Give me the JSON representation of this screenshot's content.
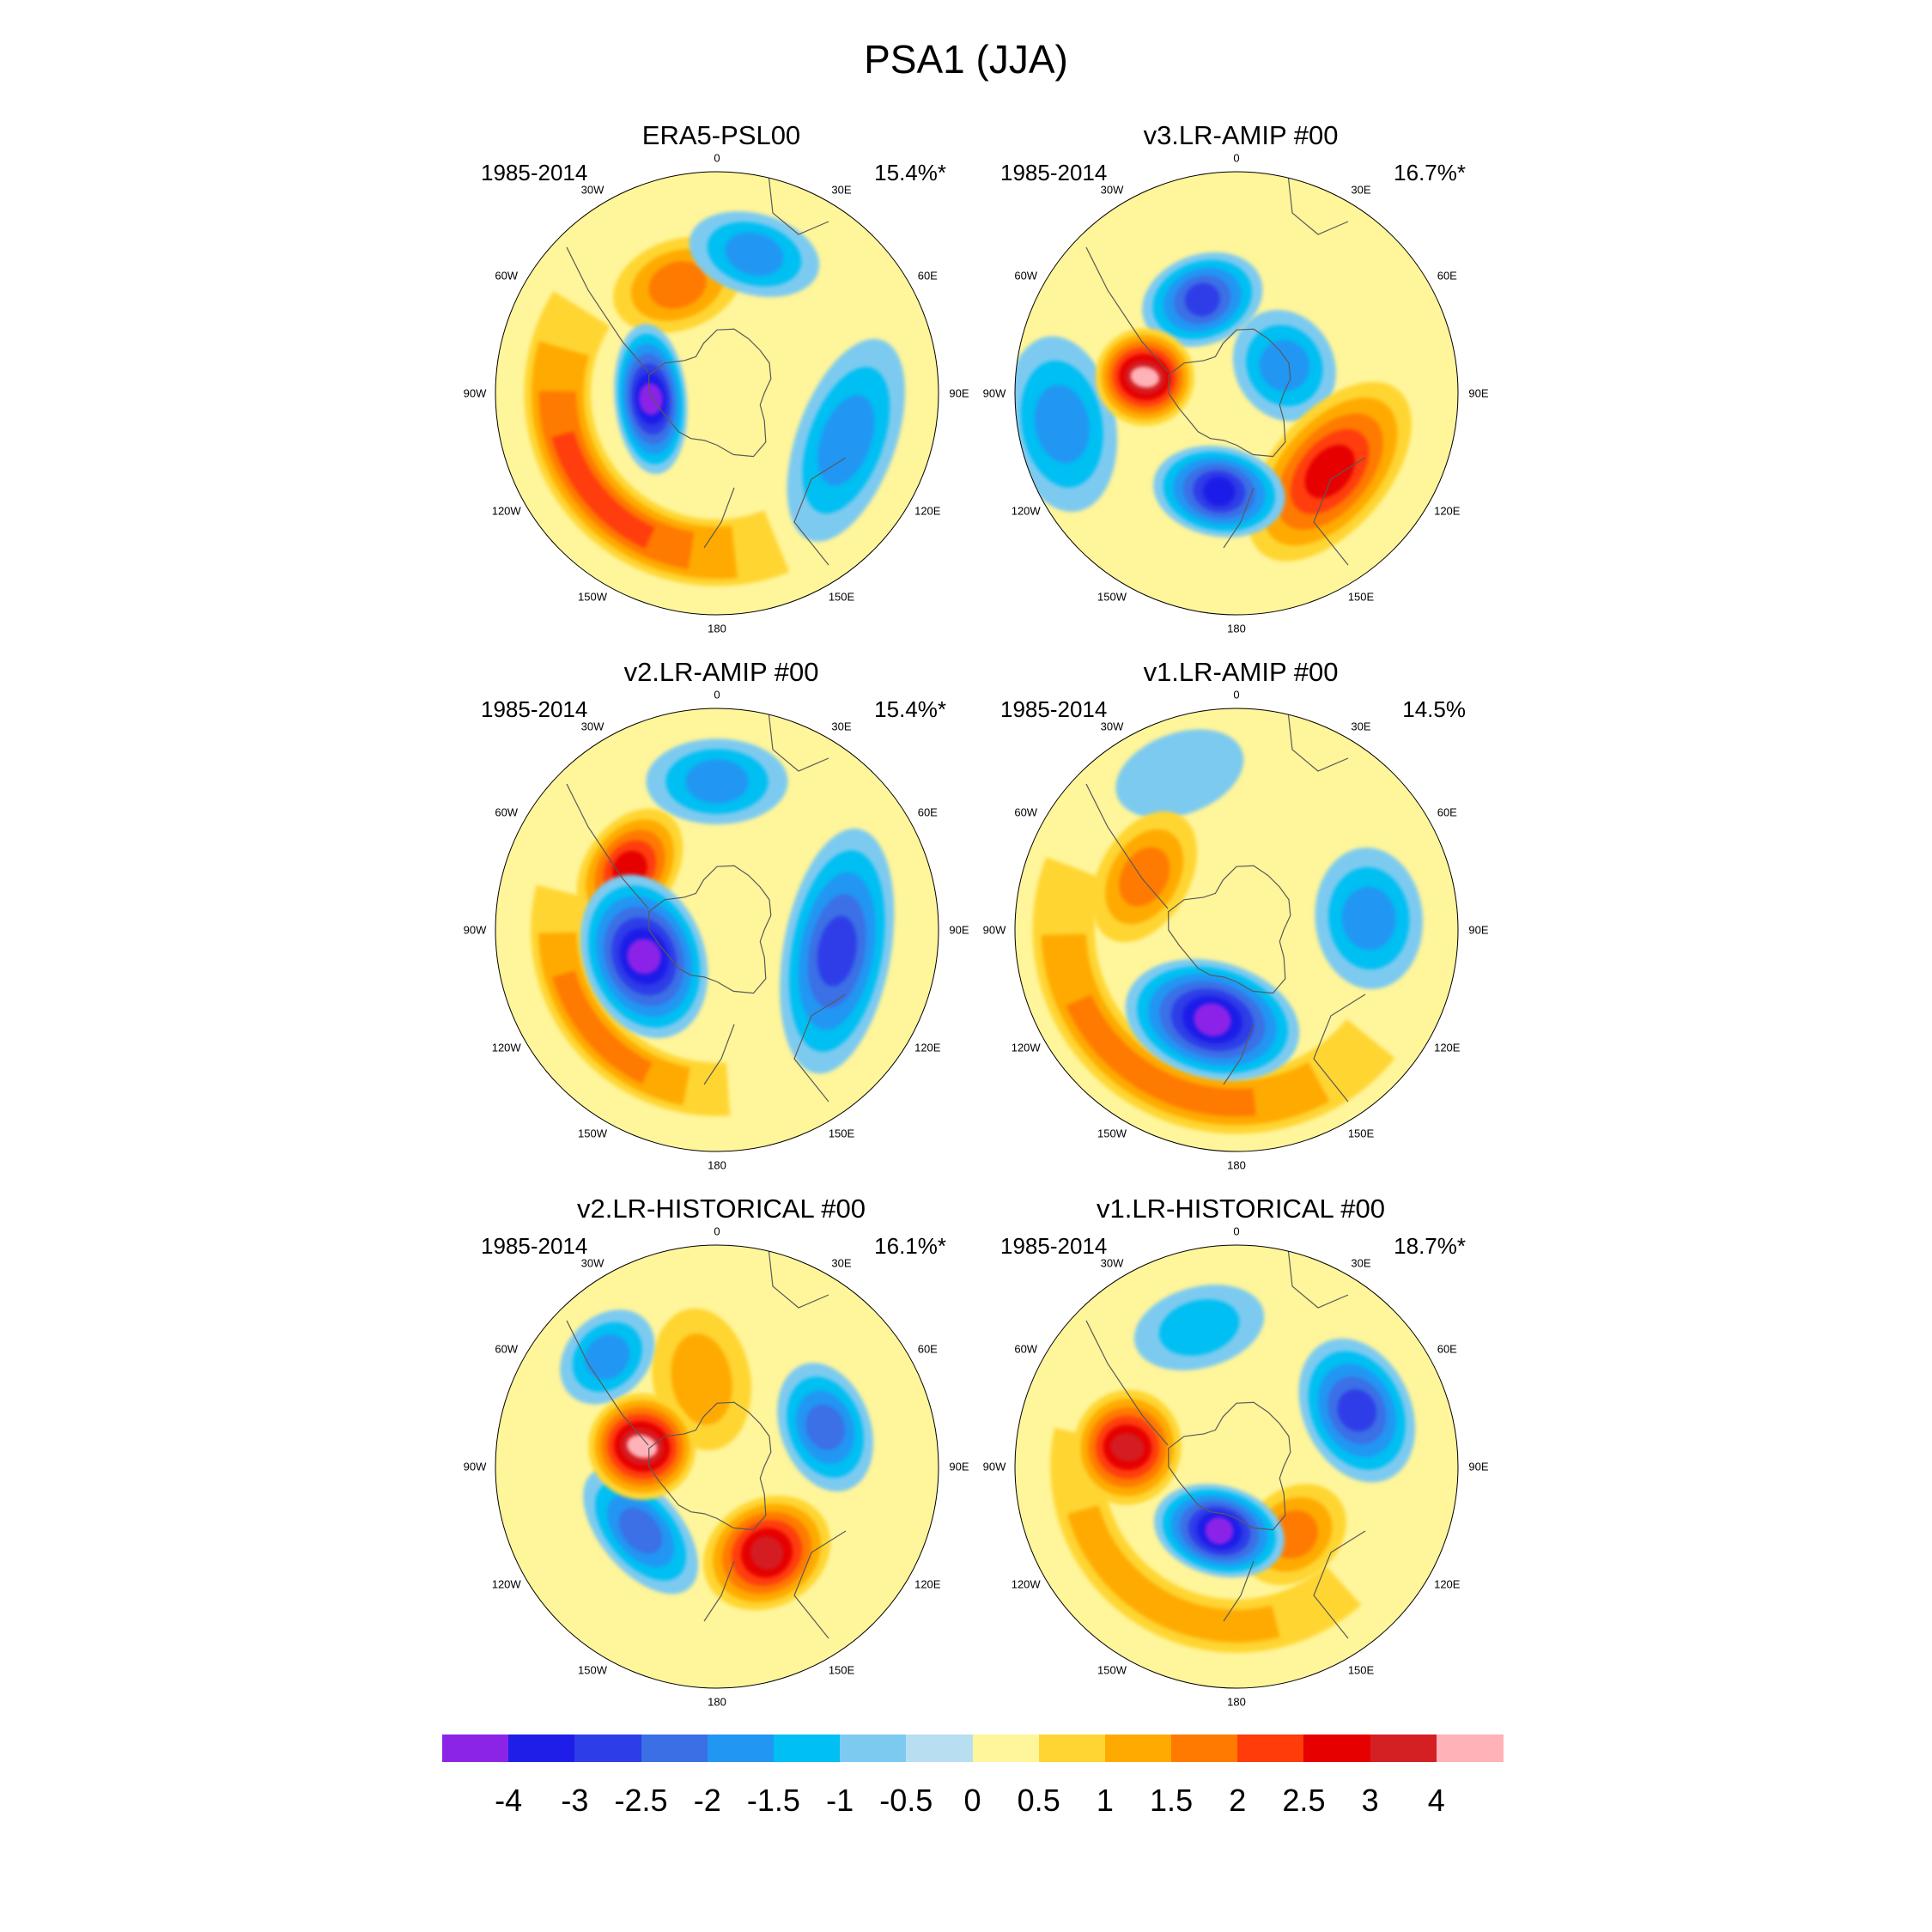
{
  "title": "PSA1 (JJA)",
  "lon_labels": [
    "0",
    "30E",
    "60E",
    "90E",
    "120E",
    "150E",
    "180",
    "150W",
    "120W",
    "90W",
    "60W",
    "30W"
  ],
  "panels": [
    {
      "name": "ERA5-PSL00",
      "years": "1985-2014",
      "percent": "15.4%*",
      "blobs": [
        {
          "lon": -95,
          "r": 0.3,
          "rx": 0.34,
          "ry": 0.14,
          "rot": 0,
          "value": -4,
          "shape": "core"
        },
        {
          "lon": -130,
          "r": 0.72,
          "rx": 0.8,
          "ry": 0.3,
          "rot": 0,
          "value": 2,
          "shape": "arc"
        },
        {
          "lon": -20,
          "r": 0.52,
          "rx": 0.3,
          "ry": 0.18,
          "rot": 0,
          "value": 1.5,
          "shape": "core"
        },
        {
          "lon": 15,
          "r": 0.65,
          "rx": 0.3,
          "ry": 0.16,
          "rot": 0,
          "value": -1.5,
          "shape": "core"
        },
        {
          "lon": 110,
          "r": 0.62,
          "rx": 0.48,
          "ry": 0.2,
          "rot": 0,
          "value": -1.5,
          "shape": "core"
        }
      ]
    },
    {
      "name": "v3.LR-AMIP  #00",
      "years": "1985-2014",
      "percent": "16.7%*",
      "blobs": [
        {
          "lon": -80,
          "r": 0.42,
          "rx": 0.22,
          "ry": 0.2,
          "rot": 0,
          "value": 4,
          "shape": "core"
        },
        {
          "lon": -170,
          "r": 0.45,
          "rx": 0.3,
          "ry": 0.18,
          "rot": 0,
          "value": -3,
          "shape": "core"
        },
        {
          "lon": 130,
          "r": 0.55,
          "rx": 0.48,
          "ry": 0.24,
          "rot": 0,
          "value": 2.5,
          "shape": "core"
        },
        {
          "lon": -20,
          "r": 0.45,
          "rx": 0.28,
          "ry": 0.18,
          "rot": 0,
          "value": -2.5,
          "shape": "core"
        },
        {
          "lon": -100,
          "r": 0.8,
          "rx": 0.4,
          "ry": 0.22,
          "rot": 0,
          "value": -1.5,
          "shape": "core"
        },
        {
          "lon": 60,
          "r": 0.25,
          "rx": 0.26,
          "ry": 0.2,
          "rot": 0,
          "value": -1.5,
          "shape": "core"
        }
      ]
    },
    {
      "name": "v2.LR-AMIP  #00",
      "years": "1985-2014",
      "percent": "15.4%*",
      "blobs": [
        {
          "lon": -110,
          "r": 0.35,
          "rx": 0.38,
          "ry": 0.25,
          "rot": 0,
          "value": -4,
          "shape": "core"
        },
        {
          "lon": -55,
          "r": 0.48,
          "rx": 0.3,
          "ry": 0.18,
          "rot": 0,
          "value": 2.5,
          "shape": "core"
        },
        {
          "lon": 0,
          "r": 0.67,
          "rx": 0.32,
          "ry": 0.17,
          "rot": 0,
          "value": -1.5,
          "shape": "core"
        },
        {
          "lon": 100,
          "r": 0.55,
          "rx": 0.56,
          "ry": 0.22,
          "rot": 0,
          "value": -2.5,
          "shape": "core"
        },
        {
          "lon": -130,
          "r": 0.72,
          "rx": 0.6,
          "ry": 0.24,
          "rot": 0,
          "value": 1.5,
          "shape": "arc"
        }
      ]
    },
    {
      "name": "v1.LR-AMIP  #00",
      "years": "1985-2014",
      "percent": "14.5%",
      "blobs": [
        {
          "lon": -165,
          "r": 0.42,
          "rx": 0.4,
          "ry": 0.24,
          "rot": 0,
          "value": -4,
          "shape": "core"
        },
        {
          "lon": -150,
          "r": 0.78,
          "rx": 0.9,
          "ry": 0.28,
          "rot": 0,
          "value": 1.5,
          "shape": "arc"
        },
        {
          "lon": -60,
          "r": 0.48,
          "rx": 0.32,
          "ry": 0.18,
          "rot": 0,
          "value": 1.5,
          "shape": "core"
        },
        {
          "lon": 85,
          "r": 0.6,
          "rx": 0.32,
          "ry": 0.22,
          "rot": 0,
          "value": -1.5,
          "shape": "core"
        },
        {
          "lon": -20,
          "r": 0.75,
          "rx": 0.3,
          "ry": 0.16,
          "rot": 0,
          "value": -0.5,
          "shape": "core"
        }
      ]
    },
    {
      "name": "v2.LR-HISTORICAL  #00",
      "years": "1985-2014",
      "percent": "16.1%*",
      "blobs": [
        {
          "lon": -75,
          "r": 0.35,
          "rx": 0.24,
          "ry": 0.22,
          "rot": 0,
          "value": 4,
          "shape": "core"
        },
        {
          "lon": 150,
          "r": 0.45,
          "rx": 0.3,
          "ry": 0.22,
          "rot": 0,
          "value": 3,
          "shape": "core"
        },
        {
          "lon": -130,
          "r": 0.45,
          "rx": 0.34,
          "ry": 0.16,
          "rot": 0,
          "value": -2,
          "shape": "core"
        },
        {
          "lon": 70,
          "r": 0.52,
          "rx": 0.3,
          "ry": 0.18,
          "rot": 0,
          "value": -2,
          "shape": "core"
        },
        {
          "lon": -45,
          "r": 0.7,
          "rx": 0.24,
          "ry": 0.16,
          "rot": 0,
          "value": -1.5,
          "shape": "core"
        },
        {
          "lon": -10,
          "r": 0.4,
          "rx": 0.22,
          "ry": 0.3,
          "rot": 0,
          "value": 1,
          "shape": "core"
        }
      ]
    },
    {
      "name": "v1.LR-HISTORICAL  #00",
      "years": "1985-2014",
      "percent": "18.7%*",
      "blobs": [
        {
          "lon": -80,
          "r": 0.5,
          "rx": 0.26,
          "ry": 0.22,
          "rot": 0,
          "value": 3,
          "shape": "core"
        },
        {
          "lon": -165,
          "r": 0.3,
          "rx": 0.3,
          "ry": 0.18,
          "rot": 0,
          "value": -4,
          "shape": "core"
        },
        {
          "lon": 65,
          "r": 0.6,
          "rx": 0.34,
          "ry": 0.22,
          "rot": 0,
          "value": -2.5,
          "shape": "core"
        },
        {
          "lon": 140,
          "r": 0.4,
          "rx": 0.26,
          "ry": 0.18,
          "rot": 0,
          "value": 1.5,
          "shape": "core"
        },
        {
          "lon": -150,
          "r": 0.72,
          "rx": 0.8,
          "ry": 0.24,
          "rot": 0,
          "value": 1,
          "shape": "arc"
        },
        {
          "lon": -15,
          "r": 0.65,
          "rx": 0.3,
          "ry": 0.16,
          "rot": 0,
          "value": -1,
          "shape": "core"
        }
      ]
    }
  ],
  "colorbar": {
    "labels": [
      "-4",
      "-3",
      "-2.5",
      "-2",
      "-1.5",
      "-1",
      "-0.5",
      "0",
      "0.5",
      "1",
      "1.5",
      "2",
      "2.5",
      "3",
      "4"
    ],
    "colors": [
      "#8c24e8",
      "#1e1ee8",
      "#2d3ee8",
      "#3a6fe6",
      "#2196f3",
      "#00bff2",
      "#7dcaf0",
      "#b8def2",
      "#fff59a",
      "#ffd533",
      "#ffaa00",
      "#ff7a00",
      "#ff3c0a",
      "#e60000",
      "#d41f23",
      "#ffb3b8"
    ]
  },
  "colors": {
    "background": "#b8def2",
    "coastline": "#5a5a5a",
    "border": "#000000"
  }
}
